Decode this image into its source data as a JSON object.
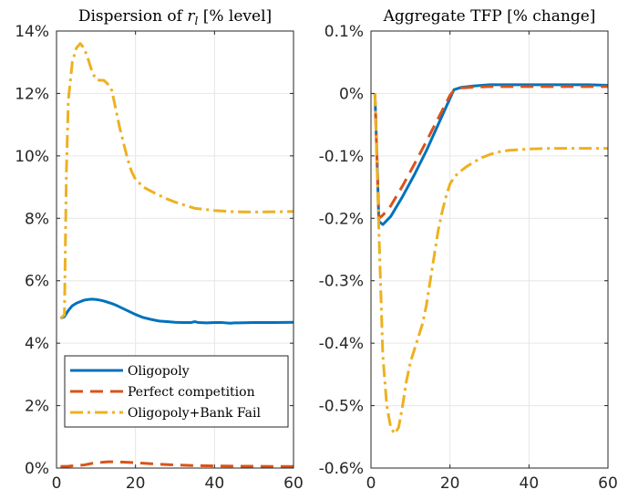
{
  "chart_data": [
    {
      "type": "line",
      "title_prefix": "Dispersion of ",
      "title_math": "r",
      "title_sub": "l",
      "title_suffix": " [% level]",
      "xlim": [
        0,
        60
      ],
      "ylim": [
        0,
        14
      ],
      "xticks": [
        0,
        20,
        40,
        60
      ],
      "yticks": [
        0,
        2,
        4,
        6,
        8,
        10,
        12,
        14
      ],
      "ytick_labels": [
        "0%",
        "2%",
        "4%",
        "6%",
        "8%",
        "10%",
        "12%",
        "14%"
      ],
      "grid": true,
      "legend": {
        "position": "lower-left",
        "entries": [
          "Oligopoly",
          "Perfect competition",
          "Oligopoly+Bank Fail"
        ]
      },
      "series": [
        {
          "name": "Oligopoly",
          "color": "#0072BD",
          "style": "solid",
          "x": [
            1,
            2,
            3,
            4,
            5,
            6,
            7,
            8,
            9,
            10,
            11,
            12,
            13,
            14,
            15,
            16,
            18,
            20,
            22,
            24,
            26,
            28,
            30,
            32,
            34,
            35,
            36,
            38,
            40,
            42,
            44,
            45,
            46,
            50,
            55,
            60
          ],
          "y": [
            4.8,
            4.85,
            5.05,
            5.2,
            5.28,
            5.33,
            5.38,
            5.4,
            5.41,
            5.4,
            5.38,
            5.35,
            5.31,
            5.27,
            5.22,
            5.16,
            5.04,
            4.92,
            4.82,
            4.76,
            4.71,
            4.69,
            4.67,
            4.66,
            4.66,
            4.69,
            4.66,
            4.65,
            4.66,
            4.66,
            4.64,
            4.65,
            4.65,
            4.66,
            4.66,
            4.67
          ]
        },
        {
          "name": "Perfect competition",
          "color": "#D95319",
          "style": "dashed",
          "x": [
            1,
            3,
            5,
            7,
            9,
            11,
            13,
            15,
            17,
            20,
            25,
            30,
            35,
            40,
            45,
            50,
            55,
            60
          ],
          "y": [
            0.05,
            0.06,
            0.08,
            0.1,
            0.15,
            0.18,
            0.2,
            0.2,
            0.19,
            0.17,
            0.13,
            0.1,
            0.08,
            0.07,
            0.06,
            0.06,
            0.05,
            0.05
          ]
        },
        {
          "name": "Oligopoly+Bank Fail",
          "color": "#EDB120",
          "style": "dashdot",
          "x": [
            1,
            2,
            2.5,
            3,
            4,
            5,
            6,
            7,
            8,
            9,
            10,
            11,
            12,
            13,
            14,
            15,
            16,
            17,
            18,
            19,
            20,
            22,
            25,
            28,
            30,
            35,
            40,
            45,
            50,
            55,
            60
          ],
          "y": [
            4.8,
            4.9,
            9.5,
            11.8,
            13.0,
            13.45,
            13.6,
            13.45,
            13.1,
            12.7,
            12.45,
            12.42,
            12.42,
            12.3,
            12.1,
            11.5,
            10.9,
            10.4,
            9.9,
            9.5,
            9.25,
            9.0,
            8.8,
            8.62,
            8.52,
            8.32,
            8.25,
            8.21,
            8.2,
            8.21,
            8.22
          ]
        }
      ]
    },
    {
      "type": "line",
      "title": "Aggregate TFP [% change]",
      "xlim": [
        0,
        60
      ],
      "ylim": [
        -0.6,
        0.1
      ],
      "xticks": [
        0,
        20,
        40,
        60
      ],
      "yticks": [
        -0.6,
        -0.5,
        -0.4,
        -0.3,
        -0.2,
        -0.1,
        0,
        0.1
      ],
      "ytick_labels": [
        "-0.6%",
        "-0.5%",
        "-0.4%",
        "-0.3%",
        "-0.2%",
        "-0.1%",
        "0%",
        "0.1%"
      ],
      "grid": true,
      "series": [
        {
          "name": "Oligopoly",
          "color": "#0072BD",
          "style": "solid",
          "x": [
            1,
            1.5,
            2,
            3,
            5,
            8,
            11,
            14,
            17,
            20,
            21,
            23,
            26,
            30,
            35,
            40,
            45,
            50,
            55,
            60
          ],
          "y": [
            0,
            -0.1,
            -0.205,
            -0.21,
            -0.197,
            -0.165,
            -0.13,
            -0.092,
            -0.05,
            -0.008,
            0.006,
            0.01,
            0.012,
            0.014,
            0.014,
            0.014,
            0.014,
            0.014,
            0.014,
            0.013
          ]
        },
        {
          "name": "Perfect competition",
          "color": "#D95319",
          "style": "dashed",
          "x": [
            1,
            1.5,
            2,
            3,
            5,
            8,
            11,
            14,
            17,
            20,
            21,
            23,
            26,
            30,
            35,
            40,
            45,
            50,
            55,
            60
          ],
          "y": [
            0,
            -0.1,
            -0.2,
            -0.195,
            -0.18,
            -0.148,
            -0.113,
            -0.077,
            -0.04,
            -0.003,
            0.005,
            0.009,
            0.01,
            0.011,
            0.011,
            0.011,
            0.011,
            0.011,
            0.011,
            0.011
          ]
        },
        {
          "name": "Oligopoly+Bank Fail",
          "color": "#EDB120",
          "style": "dashdot",
          "x": [
            1,
            2,
            3,
            4,
            5,
            6,
            7,
            8,
            9,
            10,
            11,
            12,
            13,
            14,
            15,
            16,
            17,
            18,
            19,
            20,
            21,
            22,
            24,
            26,
            28,
            30,
            32,
            35,
            40,
            45,
            50,
            55,
            60
          ],
          "y": [
            0,
            -0.22,
            -0.42,
            -0.5,
            -0.535,
            -0.545,
            -0.535,
            -0.5,
            -0.46,
            -0.43,
            -0.41,
            -0.39,
            -0.37,
            -0.34,
            -0.3,
            -0.26,
            -0.22,
            -0.19,
            -0.165,
            -0.145,
            -0.135,
            -0.128,
            -0.118,
            -0.11,
            -0.103,
            -0.098,
            -0.094,
            -0.091,
            -0.089,
            -0.088,
            -0.088,
            -0.088,
            -0.088
          ]
        }
      ]
    }
  ]
}
